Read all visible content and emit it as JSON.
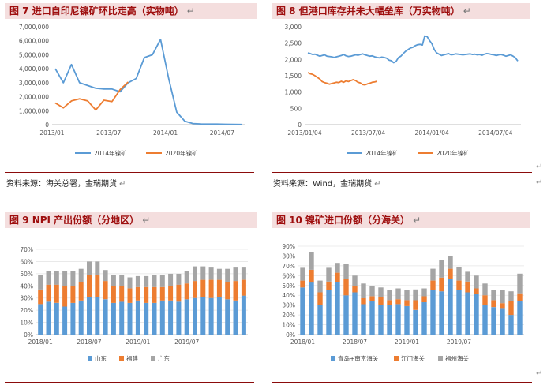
{
  "return_glyph": "↵",
  "panels": [
    {
      "id": "p7",
      "title": "图 7  进口自印尼镍矿环比走高（实物吨）"
    },
    {
      "id": "p8",
      "title": "图 8  但港口库存并未大幅垒库（万实物吨）"
    },
    {
      "id": "p9",
      "title": "图 9  NPI 产出份额（分地区）"
    },
    {
      "id": "p10",
      "title": "图 10  镍矿进口份额（分海关）"
    }
  ],
  "sources": {
    "left": "资料来源：海关总署，金瑞期货",
    "right": "资料来源：Wind，金瑞期货"
  },
  "chart_data": [
    {
      "type": "line",
      "yticks": [
        "0",
        "1,000,000",
        "2,000,000",
        "3,000,000",
        "4,000,000",
        "5,000,000",
        "6,000,000",
        "7,000,000"
      ],
      "ylim": [
        0,
        7000000
      ],
      "xlabels": [
        "2013/01",
        "2013/07",
        "2014/01",
        "2014/07"
      ],
      "series": [
        {
          "name": "2014年镍矿",
          "color": "#5b9bd5",
          "values": [
            4000000,
            3000000,
            4300000,
            3000000,
            2800000,
            2600000,
            2550000,
            2550000,
            2350000,
            3000000,
            3300000,
            4800000,
            5000000,
            6100000,
            3300000,
            900000,
            250000,
            80000,
            50000,
            40000,
            40000,
            30000,
            20000,
            10000
          ]
        },
        {
          "name": "2020年镍矿",
          "color": "#ed7d31",
          "values": [
            1550000,
            1200000,
            1700000,
            1850000,
            1700000,
            1050000,
            1750000,
            1650000,
            2500000,
            3050000
          ]
        }
      ]
    },
    {
      "type": "line",
      "yticks": [
        "0",
        "500",
        "1,000",
        "1,500",
        "2,000",
        "2,500",
        "3,000"
      ],
      "ylim": [
        0,
        3000
      ],
      "xlabels": [
        "2013/01/04",
        "2013/07/04",
        "2014/01/04",
        "2014/07/04"
      ],
      "series": [
        {
          "name": "2014年镍矿",
          "color": "#5b9bd5",
          "values": [
            2200,
            2180,
            2150,
            2160,
            2130,
            2100,
            2120,
            2140,
            2100,
            2090,
            2080,
            2060,
            2080,
            2100,
            2120,
            2150,
            2110,
            2090,
            2100,
            2120,
            2140,
            2130,
            2150,
            2170,
            2140,
            2120,
            2100,
            2110,
            2080,
            2060,
            2050,
            2070,
            2060,
            2040,
            1980,
            1960,
            1900,
            1940,
            2060,
            2100,
            2180,
            2250,
            2300,
            2350,
            2370,
            2420,
            2450,
            2460,
            2440,
            2720,
            2700,
            2580,
            2480,
            2300,
            2200,
            2160,
            2120,
            2140,
            2160,
            2180,
            2140,
            2150,
            2170,
            2160,
            2150,
            2140,
            2150,
            2160,
            2170,
            2150,
            2160,
            2140,
            2150,
            2130,
            2160,
            2180,
            2170,
            2150,
            2140,
            2120,
            2140,
            2150,
            2130,
            2100,
            2120,
            2140,
            2100,
            2050,
            1950
          ]
        },
        {
          "name": "2020年镍矿",
          "color": "#ed7d31",
          "values": [
            1600,
            1560,
            1540,
            1500,
            1450,
            1400,
            1320,
            1290,
            1270,
            1240,
            1260,
            1280,
            1300,
            1290,
            1330,
            1300,
            1340,
            1320,
            1350,
            1380,
            1350,
            1300,
            1280,
            1230,
            1220,
            1250,
            1270,
            1300,
            1310,
            1330
          ]
        }
      ]
    },
    {
      "type": "bar",
      "stacked": true,
      "yticks": [
        "0%",
        "10%",
        "20%",
        "30%",
        "40%",
        "50%",
        "60%",
        "70%"
      ],
      "ylim": [
        0,
        70
      ],
      "xlabels": [
        "2018/01",
        "2018/07",
        "2019/01",
        "2019/07"
      ],
      "series": [
        {
          "name": "山东",
          "color": "#5b9bd5",
          "values": [
            25,
            27,
            26,
            23,
            26,
            28,
            31,
            31,
            29,
            26,
            27,
            26,
            28,
            26,
            26,
            28,
            28,
            27,
            29,
            30,
            31,
            30,
            31,
            29,
            28,
            32
          ]
        },
        {
          "name": "福建",
          "color": "#ed7d31",
          "values": [
            12,
            14,
            15,
            17,
            14,
            15,
            18,
            18,
            15,
            14,
            13,
            12,
            11,
            13,
            13,
            11,
            12,
            14,
            13,
            14,
            14,
            15,
            14,
            14,
            16,
            13
          ]
        },
        {
          "name": "广东",
          "color": "#a5a5a5",
          "values": [
            12,
            11,
            11,
            12,
            12,
            11,
            11,
            11,
            9,
            9,
            9,
            9,
            9,
            9,
            10,
            10,
            10,
            9,
            10,
            12,
            11,
            10,
            9,
            11,
            11,
            10
          ]
        }
      ]
    },
    {
      "type": "bar",
      "stacked": true,
      "yticks": [
        "0%",
        "10%",
        "20%",
        "30%",
        "40%",
        "50%",
        "60%",
        "70%",
        "80%",
        "90%"
      ],
      "ylim": [
        0,
        90
      ],
      "xlabels": [
        "2018/01",
        "2018/07",
        "2019/01",
        "2019/07"
      ],
      "series": [
        {
          "name": "青岛+南京海关",
          "color": "#5b9bd5",
          "values": [
            48,
            53,
            30,
            45,
            53,
            40,
            43,
            31,
            34,
            30,
            30,
            31,
            29,
            25,
            33,
            45,
            44,
            57,
            45,
            43,
            41,
            30,
            28,
            27,
            20,
            34
          ]
        },
        {
          "name": "江门海关",
          "color": "#ed7d31",
          "values": [
            7,
            13,
            13,
            9,
            10,
            17,
            6,
            6,
            5,
            8,
            5,
            5,
            6,
            10,
            6,
            10,
            14,
            10,
            10,
            11,
            6,
            10,
            7,
            5,
            14,
            8
          ]
        },
        {
          "name": "福州海关",
          "color": "#a5a5a5",
          "values": [
            13,
            18,
            12,
            14,
            10,
            15,
            11,
            15,
            10,
            10,
            10,
            11,
            10,
            11,
            8,
            12,
            18,
            13,
            14,
            10,
            13,
            12,
            10,
            13,
            10,
            20
          ]
        }
      ]
    }
  ]
}
